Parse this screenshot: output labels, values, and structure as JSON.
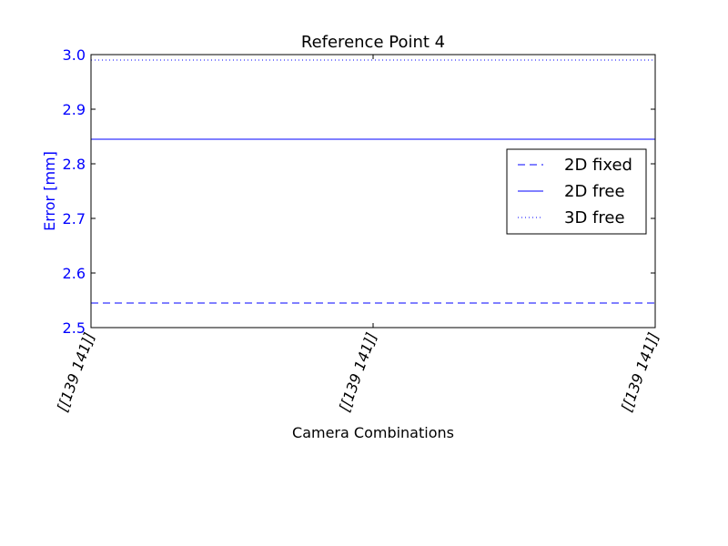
{
  "chart_data": {
    "type": "line",
    "title": "Reference Point 4",
    "xlabel": "Camera Combinations",
    "ylabel": "Error [mm]",
    "categories": [
      "[[139 141]]",
      "[[139 141]]",
      "[[139 141]]"
    ],
    "ylim": [
      2.5,
      3.0
    ],
    "yticks": [
      "2.5",
      "2.6",
      "2.7",
      "2.8",
      "2.9",
      "3.0"
    ],
    "series": [
      {
        "name": "2D fixed",
        "style": "dashed",
        "values": [
          2.545,
          2.545,
          2.545
        ]
      },
      {
        "name": "2D free",
        "style": "solid",
        "values": [
          2.845,
          2.845,
          2.845
        ]
      },
      {
        "name": "3D free",
        "style": "dotted",
        "values": [
          2.99,
          2.99,
          2.99
        ]
      }
    ],
    "legend_position": "right",
    "grid": false,
    "colors": {
      "series": "#0000ff",
      "ylabel": "#0000ff",
      "yticks": "#0000ff",
      "axes": "#000000"
    }
  }
}
